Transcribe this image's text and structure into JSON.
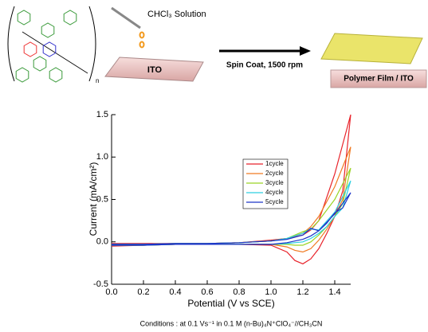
{
  "scheme": {
    "solution": "CHCl₃ Solution",
    "substrate": "ITO",
    "process": "Spin Coat, 1500 rpm",
    "product": "Polymer Film / ITO",
    "repeat": "n"
  },
  "chart_data": {
    "type": "line",
    "x_label": "Potential (V vs SCE)",
    "y_label": "Current (mA/cm²)",
    "caption": "Conditions : at 0.1 Vs⁻¹ in 0.1 M (n-Bu)₄N⁺ClO₄⁻//CH₃CN",
    "xlim": [
      0,
      1.5
    ],
    "ylim": [
      -0.5,
      1.5
    ],
    "xticks": [
      {
        "value": 0,
        "label": "0.0"
      },
      {
        "value": 0.2,
        "label": "0.2"
      },
      {
        "value": 0.4,
        "label": "0.4"
      },
      {
        "value": 0.6,
        "label": "0.6"
      },
      {
        "value": 0.8,
        "label": "0.8"
      },
      {
        "value": 1,
        "label": "1.0"
      },
      {
        "value": 1.2,
        "label": "1.2"
      },
      {
        "value": 1.4,
        "label": "1.4"
      }
    ],
    "yticks": [
      {
        "value": -0.5,
        "label": "-0.5"
      },
      {
        "value": 0,
        "label": "0.0"
      },
      {
        "value": 0.5,
        "label": "0.5"
      },
      {
        "value": 1,
        "label": "1.0"
      },
      {
        "value": 1.5,
        "label": "1.5"
      }
    ],
    "x": [
      0,
      0.2,
      0.4,
      0.6,
      0.8,
      1.0,
      1.1,
      1.2,
      1.25,
      1.3,
      1.4,
      1.5,
      1.45,
      1.4,
      1.35,
      1.3,
      1.25,
      1.2,
      1.15,
      1.1,
      1.0,
      0.8,
      0.6,
      0.4,
      0.2,
      0
    ],
    "series": [
      {
        "name": "1cycle",
        "color": "#e8222a",
        "values": [
          -0.02,
          -0.02,
          -0.02,
          -0.02,
          -0.01,
          0.02,
          0.04,
          0.08,
          0.14,
          0.25,
          0.8,
          1.5,
          0.6,
          0.3,
          0.1,
          -0.08,
          -0.2,
          -0.26,
          -0.22,
          -0.12,
          -0.04,
          -0.03,
          -0.03,
          -0.03,
          -0.04,
          -0.05
        ]
      },
      {
        "name": "2cycle",
        "color": "#f07a22",
        "values": [
          -0.03,
          -0.03,
          -0.02,
          -0.02,
          -0.01,
          0.01,
          0.04,
          0.1,
          0.18,
          0.3,
          0.65,
          1.12,
          0.5,
          0.3,
          0.15,
          0.02,
          -0.08,
          -0.12,
          -0.1,
          -0.06,
          -0.03,
          -0.03,
          -0.03,
          -0.03,
          -0.04,
          -0.04
        ]
      },
      {
        "name": "3cycle",
        "color": "#9ad425",
        "values": [
          -0.03,
          -0.03,
          -0.02,
          -0.02,
          -0.01,
          0.01,
          0.04,
          0.12,
          0.15,
          0.25,
          0.5,
          0.87,
          0.45,
          0.3,
          0.18,
          0.08,
          0.0,
          -0.04,
          -0.04,
          -0.03,
          -0.03,
          -0.03,
          -0.03,
          -0.03,
          -0.04,
          -0.04
        ]
      },
      {
        "name": "4cycle",
        "color": "#2ccfe0",
        "values": [
          -0.03,
          -0.03,
          -0.02,
          -0.02,
          -0.01,
          0.01,
          0.04,
          0.1,
          0.15,
          0.14,
          0.35,
          0.72,
          0.4,
          0.3,
          0.18,
          0.1,
          0.04,
          0.0,
          -0.01,
          -0.02,
          -0.03,
          -0.03,
          -0.03,
          -0.03,
          -0.04,
          -0.04
        ]
      },
      {
        "name": "5cycle",
        "color": "#1c34c8",
        "values": [
          -0.03,
          -0.03,
          -0.02,
          -0.02,
          -0.01,
          0.01,
          0.03,
          0.08,
          0.16,
          0.13,
          0.33,
          0.58,
          0.4,
          0.34,
          0.22,
          0.13,
          0.07,
          0.03,
          0.01,
          -0.01,
          -0.03,
          -0.03,
          -0.03,
          -0.03,
          -0.04,
          -0.04
        ]
      }
    ]
  }
}
